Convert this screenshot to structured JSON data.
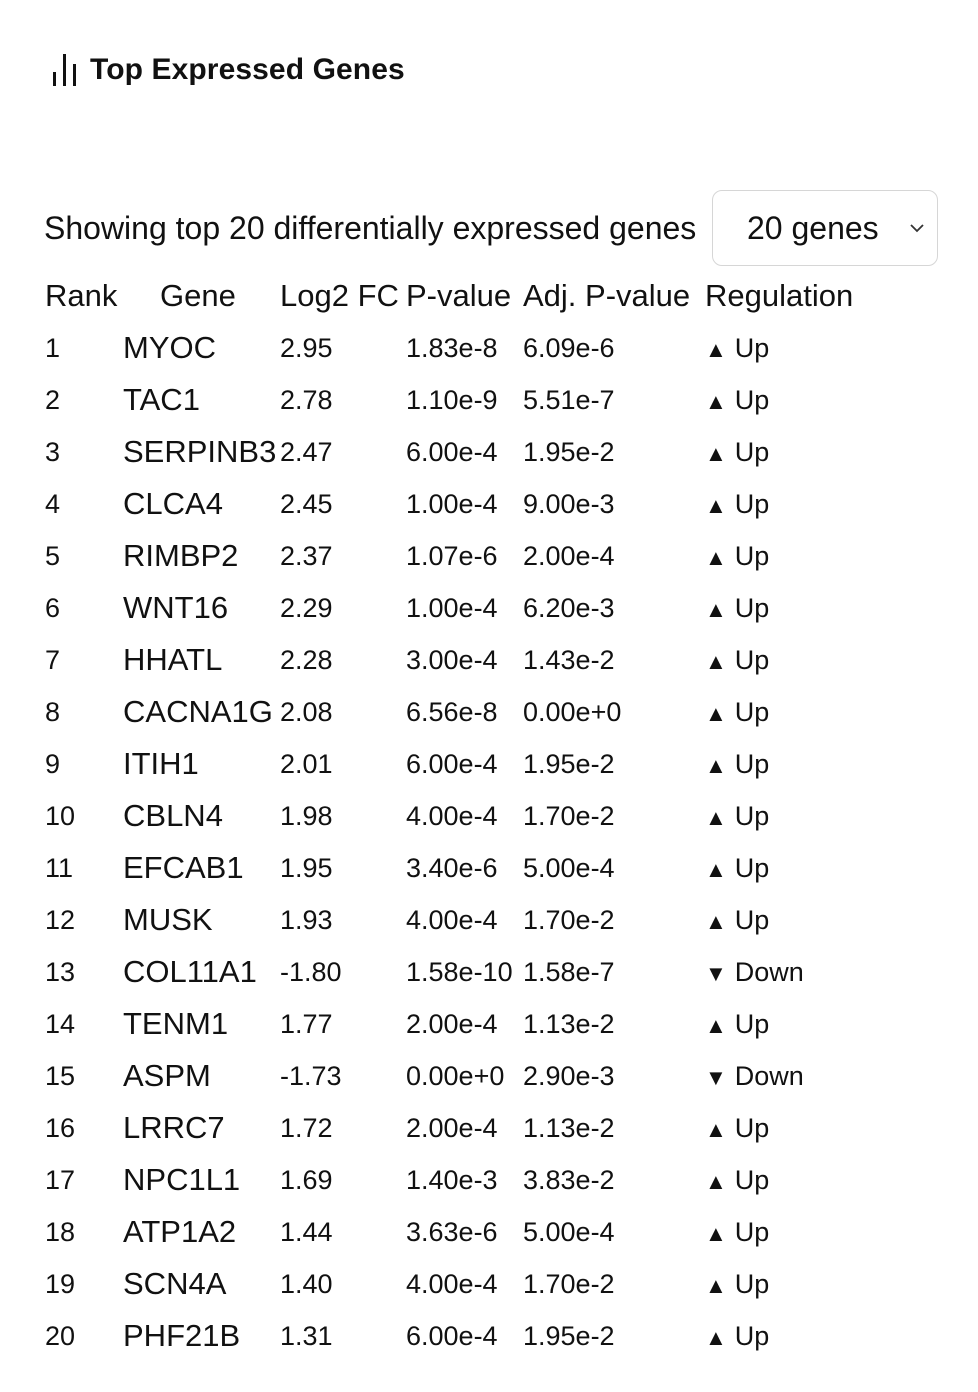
{
  "header": {
    "title": "Top Expressed Genes",
    "icon": "bar-chart-icon"
  },
  "summary": {
    "text": "Showing top 20 differentially expressed genes"
  },
  "gene_count_select": {
    "value": "20 genes"
  },
  "table": {
    "columns": [
      "Rank",
      "Gene",
      "Log2 FC",
      "P-value",
      "Adj. P-value",
      "Regulation"
    ],
    "rows": [
      {
        "rank": "1",
        "gene": "MYOC",
        "log2fc": "2.95",
        "pvalue": "1.83e-8",
        "adj_pvalue": "6.09e-6",
        "arrow": "▲",
        "regulation": "Up"
      },
      {
        "rank": "2",
        "gene": "TAC1",
        "log2fc": "2.78",
        "pvalue": "1.10e-9",
        "adj_pvalue": "5.51e-7",
        "arrow": "▲",
        "regulation": "Up"
      },
      {
        "rank": "3",
        "gene": "SERPINB3",
        "log2fc": "2.47",
        "pvalue": "6.00e-4",
        "adj_pvalue": "1.95e-2",
        "arrow": "▲",
        "regulation": "Up"
      },
      {
        "rank": "4",
        "gene": "CLCA4",
        "log2fc": "2.45",
        "pvalue": "1.00e-4",
        "adj_pvalue": "9.00e-3",
        "arrow": "▲",
        "regulation": "Up"
      },
      {
        "rank": "5",
        "gene": "RIMBP2",
        "log2fc": "2.37",
        "pvalue": "1.07e-6",
        "adj_pvalue": "2.00e-4",
        "arrow": "▲",
        "regulation": "Up"
      },
      {
        "rank": "6",
        "gene": "WNT16",
        "log2fc": "2.29",
        "pvalue": "1.00e-4",
        "adj_pvalue": "6.20e-3",
        "arrow": "▲",
        "regulation": "Up"
      },
      {
        "rank": "7",
        "gene": "HHATL",
        "log2fc": "2.28",
        "pvalue": "3.00e-4",
        "adj_pvalue": "1.43e-2",
        "arrow": "▲",
        "regulation": "Up"
      },
      {
        "rank": "8",
        "gene": "CACNA1G",
        "log2fc": "2.08",
        "pvalue": "6.56e-8",
        "adj_pvalue": "0.00e+0",
        "arrow": "▲",
        "regulation": "Up"
      },
      {
        "rank": "9",
        "gene": "ITIH1",
        "log2fc": "2.01",
        "pvalue": "6.00e-4",
        "adj_pvalue": "1.95e-2",
        "arrow": "▲",
        "regulation": "Up"
      },
      {
        "rank": "10",
        "gene": "CBLN4",
        "log2fc": "1.98",
        "pvalue": "4.00e-4",
        "adj_pvalue": "1.70e-2",
        "arrow": "▲",
        "regulation": "Up"
      },
      {
        "rank": "11",
        "gene": "EFCAB1",
        "log2fc": "1.95",
        "pvalue": "3.40e-6",
        "adj_pvalue": "5.00e-4",
        "arrow": "▲",
        "regulation": "Up"
      },
      {
        "rank": "12",
        "gene": "MUSK",
        "log2fc": "1.93",
        "pvalue": "4.00e-4",
        "adj_pvalue": "1.70e-2",
        "arrow": "▲",
        "regulation": "Up"
      },
      {
        "rank": "13",
        "gene": "COL11A1",
        "log2fc": "-1.80",
        "pvalue": "1.58e-10",
        "adj_pvalue": "1.58e-7",
        "arrow": "▼",
        "regulation": "Down"
      },
      {
        "rank": "14",
        "gene": "TENM1",
        "log2fc": "1.77",
        "pvalue": "2.00e-4",
        "adj_pvalue": "1.13e-2",
        "arrow": "▲",
        "regulation": "Up"
      },
      {
        "rank": "15",
        "gene": "ASPM",
        "log2fc": "-1.73",
        "pvalue": "0.00e+0",
        "adj_pvalue": "2.90e-3",
        "arrow": "▼",
        "regulation": "Down"
      },
      {
        "rank": "16",
        "gene": "LRRC7",
        "log2fc": "1.72",
        "pvalue": "2.00e-4",
        "adj_pvalue": "1.13e-2",
        "arrow": "▲",
        "regulation": "Up"
      },
      {
        "rank": "17",
        "gene": "NPC1L1",
        "log2fc": "1.69",
        "pvalue": "1.40e-3",
        "adj_pvalue": "3.83e-2",
        "arrow": "▲",
        "regulation": "Up"
      },
      {
        "rank": "18",
        "gene": "ATP1A2",
        "log2fc": "1.44",
        "pvalue": "3.63e-6",
        "adj_pvalue": "5.00e-4",
        "arrow": "▲",
        "regulation": "Up"
      },
      {
        "rank": "19",
        "gene": "SCN4A",
        "log2fc": "1.40",
        "pvalue": "4.00e-4",
        "adj_pvalue": "1.70e-2",
        "arrow": "▲",
        "regulation": "Up"
      },
      {
        "rank": "20",
        "gene": "PHF21B",
        "log2fc": "1.31",
        "pvalue": "6.00e-4",
        "adj_pvalue": "1.95e-2",
        "arrow": "▲",
        "regulation": "Up"
      }
    ]
  }
}
